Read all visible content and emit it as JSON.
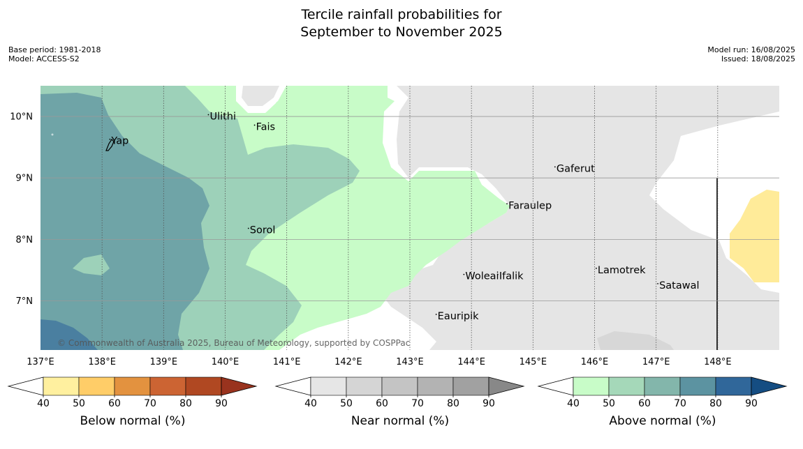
{
  "title_line1": "Tercile rainfall probabilities for",
  "title_line2": "September to November 2025",
  "base_period": "Base period: 1981-2018",
  "model": "Model: ACCESS-S2",
  "model_run": "Model run: 16/08/2025",
  "issued": "Issued: 18/08/2025",
  "copyright": "© Commonwealth of Australia 2025, Bureau of Meteorology, supported by COSPPac",
  "map": {
    "lon_ticks": [
      "137°E",
      "138°E",
      "139°E",
      "140°E",
      "141°E",
      "142°E",
      "143°E",
      "144°E",
      "145°E",
      "146°E",
      "147°E",
      "148°E"
    ],
    "lat_ticks": [
      "10°N",
      "9°N",
      "8°N",
      "7°N"
    ],
    "lon_range": [
      137.0,
      149.0
    ],
    "lat_range": [
      6.2,
      10.5
    ],
    "places": [
      {
        "name": "Yap",
        "lon": 138.15,
        "lat": 9.55
      },
      {
        "name": "Ulithi",
        "lon": 139.75,
        "lat": 9.95
      },
      {
        "name": "Fais",
        "lon": 140.5,
        "lat": 9.78
      },
      {
        "name": "Gaferut",
        "lon": 145.38,
        "lat": 9.1
      },
      {
        "name": "Faraulep",
        "lon": 144.6,
        "lat": 8.5
      },
      {
        "name": "Sorol",
        "lon": 140.4,
        "lat": 8.1
      },
      {
        "name": "Woleai",
        "lon": 143.9,
        "lat": 7.35
      },
      {
        "name": "Ifalik",
        "lon": 144.45,
        "lat": 7.35
      },
      {
        "name": "Lamotrek",
        "lon": 146.05,
        "lat": 7.45
      },
      {
        "name": "Satawal",
        "lon": 147.05,
        "lat": 7.2
      },
      {
        "name": "Eauripik",
        "lon": 143.45,
        "lat": 6.7
      }
    ],
    "colors": {
      "above_40_50": "#c8fcc8",
      "above_50_60": "#9dd1b9",
      "above_60_70": "#6fa4a7",
      "above_70_80": "#4a7fa0",
      "near_40_50": "#e5e5e5",
      "near_50_60": "#d7d7d7",
      "below_40_50": "#ffeb99"
    }
  },
  "colorbars": [
    {
      "label": "Below normal (%)",
      "ticks": [
        "40",
        "50",
        "60",
        "70",
        "80",
        "90"
      ],
      "colors": [
        "#fff09f",
        "#ffcd68",
        "#e3923f",
        "#cc6433",
        "#b04822"
      ],
      "extend_color": "#99331e"
    },
    {
      "label": "Near normal (%)",
      "ticks": [
        "40",
        "50",
        "60",
        "70",
        "80",
        "90"
      ],
      "colors": [
        "#e6e6e6",
        "#d5d5d5",
        "#c4c4c4",
        "#b3b3b3",
        "#a1a1a1"
      ],
      "extend_color": "#888888"
    },
    {
      "label": "Above normal (%)",
      "ticks": [
        "40",
        "50",
        "60",
        "70",
        "80",
        "90"
      ],
      "colors": [
        "#c8fcc8",
        "#a5d8b9",
        "#83b6ab",
        "#5c93a1",
        "#30679a"
      ],
      "extend_color": "#154d82"
    }
  ]
}
